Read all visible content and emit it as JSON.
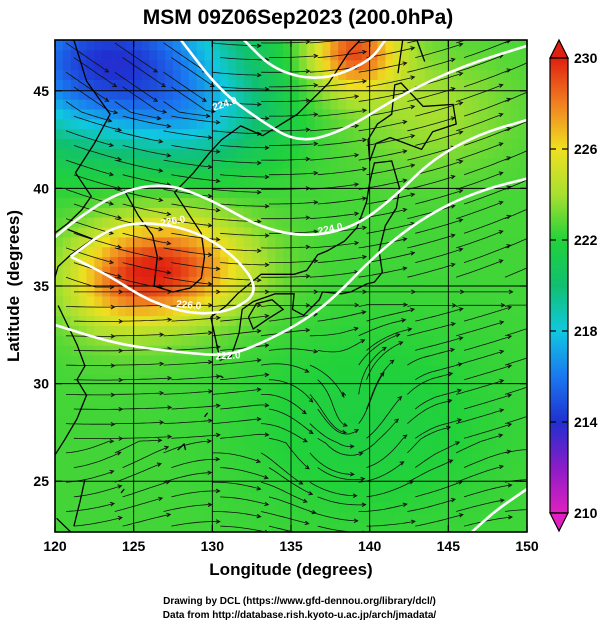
{
  "chart_data": {
    "type": "heatmap",
    "title": "MSM 09Z06Sep2023 (200.0hPa)",
    "xlabel": "Longitude (degrees)",
    "ylabel": "Latitude  (degrees)",
    "xlim": [
      120,
      150
    ],
    "ylim": [
      22.4,
      47.6
    ],
    "x_ticks": [
      120,
      125,
      130,
      135,
      140,
      145,
      150
    ],
    "y_ticks": [
      25,
      30,
      35,
      40,
      45
    ],
    "grid": true,
    "colorbar": {
      "range": [
        210,
        230
      ],
      "ticks": [
        210,
        214,
        218,
        222,
        226,
        230
      ],
      "stops": [
        {
          "value": 210,
          "color": "#e020c0"
        },
        {
          "value": 212,
          "color": "#8a1cc8"
        },
        {
          "value": 214,
          "color": "#2030d0"
        },
        {
          "value": 216,
          "color": "#1a78f0"
        },
        {
          "value": 218,
          "color": "#10c8e0"
        },
        {
          "value": 220,
          "color": "#10c070"
        },
        {
          "value": 222,
          "color": "#22d23a"
        },
        {
          "value": 224,
          "color": "#a8e030"
        },
        {
          "value": 226,
          "color": "#f0e020"
        },
        {
          "value": 228,
          "color": "#f08020"
        },
        {
          "value": 230,
          "color": "#e02010"
        }
      ]
    },
    "temperature_field": {
      "background": 222.5,
      "features": [
        {
          "lon": 123.5,
          "lat": 46.5,
          "amplitude": -8.5,
          "radius_lon": 7.5,
          "radius_lat": 4.0
        },
        {
          "lon": 129.5,
          "lat": 43.5,
          "amplitude": -2.5,
          "radius_lon": 4.5,
          "radius_lat": 2.5
        },
        {
          "lon": 127.5,
          "lat": 36.0,
          "amplitude": 6.3,
          "radius_lon": 4.8,
          "radius_lat": 2.6
        },
        {
          "lon": 124.0,
          "lat": 35.0,
          "amplitude": 3.0,
          "radius_lon": 3.5,
          "radius_lat": 2.5
        },
        {
          "lon": 139.0,
          "lat": 47.0,
          "amplitude": 6.5,
          "radius_lon": 2.8,
          "radius_lat": 2.0
        },
        {
          "lon": 144.0,
          "lat": 44.0,
          "amplitude": 1.5,
          "radius_lon": 5.0,
          "radius_lat": 3.0
        },
        {
          "lon": 140.0,
          "lat": 28.0,
          "amplitude": -0.8,
          "radius_lon": 8.0,
          "radius_lat": 5.0
        }
      ]
    },
    "contours": [
      {
        "value": 226,
        "points": [
          [
            132,
            47.6
          ],
          [
            134,
            46
          ],
          [
            137,
            45.5
          ],
          [
            140,
            46.5
          ],
          [
            141,
            47.6
          ]
        ]
      },
      {
        "value": 224,
        "points": [
          [
            128,
            47.6
          ],
          [
            130.5,
            45
          ],
          [
            133,
            43.5
          ],
          [
            135.5,
            42.3
          ],
          [
            138.5,
            43
          ],
          [
            142,
            44.8
          ],
          [
            146,
            46.3
          ],
          [
            150,
            47.3
          ]
        ]
      },
      {
        "value": 226,
        "points": [
          [
            121,
            36.5
          ],
          [
            123.5,
            38
          ],
          [
            126,
            38.3
          ],
          [
            129,
            37.8
          ],
          [
            131.5,
            36.5
          ],
          [
            133,
            34.8
          ],
          [
            131.5,
            33.8
          ],
          [
            129,
            33.5
          ],
          [
            126,
            34.2
          ],
          [
            123.5,
            35.5
          ],
          [
            121,
            36.5
          ]
        ]
      },
      {
        "value": 224,
        "points": [
          [
            120,
            37.5
          ],
          [
            121.5,
            38.5
          ],
          [
            124,
            39.8
          ],
          [
            127,
            40.3
          ],
          [
            130,
            39.4
          ],
          [
            133,
            38
          ],
          [
            136,
            37.5
          ],
          [
            139,
            38
          ],
          [
            141.5,
            39.5
          ],
          [
            144,
            41.5
          ],
          [
            147,
            42.8
          ],
          [
            150,
            43.5
          ]
        ]
      },
      {
        "value": 222,
        "points": [
          [
            120,
            33
          ],
          [
            124,
            32
          ],
          [
            128,
            31.6
          ],
          [
            131,
            31.4
          ],
          [
            133.5,
            32.2
          ],
          [
            136,
            33.3
          ],
          [
            138,
            34.6
          ],
          [
            140,
            36.3
          ],
          [
            142.5,
            38
          ],
          [
            145,
            39.2
          ],
          [
            147.5,
            40
          ],
          [
            150,
            40.5
          ]
        ]
      },
      {
        "value": 222,
        "points": [
          [
            146.5,
            22.4
          ],
          [
            148,
            23.5
          ],
          [
            150,
            24.6
          ]
        ]
      }
    ],
    "contour_labels": [
      {
        "text": "224.0",
        "lon": 130.8,
        "lat": 44.3,
        "angle": -18
      },
      {
        "text": "226.0",
        "lon": 127.5,
        "lat": 38.3,
        "angle": -10
      },
      {
        "text": "226.0",
        "lon": 128.5,
        "lat": 34.0,
        "angle": 5
      },
      {
        "text": "224.0",
        "lon": 137.5,
        "lat": 37.9,
        "angle": -12
      },
      {
        "text": "222.0",
        "lon": 131.0,
        "lat": 31.4,
        "angle": -3
      }
    ],
    "streamlines": {
      "description": "200 hPa horizontal wind streamlines",
      "flow_direction": "predominantly westerly to south-westerly"
    }
  },
  "credits": {
    "line1": "Drawing by DCL (https://www.gfd-dennou.org/library/dcl/)",
    "line2": "Data from http://database.rish.kyoto-u.ac.jp/arch/jmadata/"
  }
}
